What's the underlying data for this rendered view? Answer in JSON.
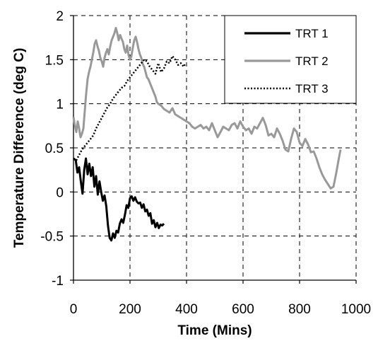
{
  "chart_data": {
    "type": "line",
    "xlabel": "Time (Mins)",
    "ylabel": "Temperature Difference (deg C)",
    "xlim": [
      0,
      1000
    ],
    "ylim": [
      -1,
      2
    ],
    "xticks": [
      0,
      200,
      400,
      600,
      800,
      1000
    ],
    "yticks": [
      -1,
      -0.5,
      0,
      0.5,
      1,
      1.5,
      2
    ],
    "xtick_labels": [
      "0",
      "200",
      "400",
      "600",
      "800",
      "1000"
    ],
    "ytick_labels": [
      "-1",
      "-0.5",
      "0",
      "0.5",
      "1",
      "1.5",
      "2"
    ],
    "grid": "dashed",
    "legend_position": "top-right",
    "series": [
      {
        "name": "TRT 1",
        "color": "#000000",
        "style": "solid",
        "x": [
          0,
          8,
          14,
          20,
          26,
          32,
          38,
          44,
          50,
          56,
          62,
          68,
          74,
          80,
          86,
          92,
          98,
          104,
          110,
          116,
          122,
          128,
          134,
          140,
          146,
          152,
          158,
          164,
          170,
          176,
          182,
          188,
          194,
          200,
          206,
          212,
          218,
          224,
          230,
          236,
          242,
          248,
          254,
          260,
          266,
          272,
          278,
          284,
          290,
          296,
          302,
          308,
          314,
          320
        ],
        "y": [
          0.38,
          0.36,
          0.22,
          0.28,
          0.12,
          -0.02,
          0.25,
          0.38,
          0.2,
          0.32,
          0.18,
          0.28,
          0.06,
          0.18,
          -0.03,
          0.12,
          0.0,
          -0.1,
          -0.04,
          -0.16,
          -0.38,
          -0.52,
          -0.55,
          -0.47,
          -0.52,
          -0.44,
          -0.46,
          -0.36,
          -0.31,
          -0.35,
          -0.26,
          -0.15,
          -0.18,
          -0.07,
          -0.05,
          -0.1,
          -0.06,
          -0.11,
          -0.13,
          -0.12,
          -0.18,
          -0.14,
          -0.22,
          -0.2,
          -0.27,
          -0.24,
          -0.36,
          -0.32,
          -0.4,
          -0.35,
          -0.41,
          -0.37,
          -0.38,
          -0.36
        ]
      },
      {
        "name": "TRT 2",
        "color": "#999999",
        "style": "solid",
        "x": [
          0,
          5,
          10,
          15,
          20,
          25,
          30,
          35,
          40,
          45,
          50,
          55,
          60,
          65,
          70,
          75,
          80,
          85,
          90,
          95,
          100,
          105,
          110,
          115,
          120,
          125,
          130,
          135,
          140,
          145,
          150,
          155,
          160,
          165,
          170,
          175,
          180,
          185,
          190,
          195,
          200,
          205,
          210,
          215,
          220,
          225,
          230,
          235,
          240,
          245,
          250,
          255,
          260,
          265,
          270,
          275,
          280,
          285,
          290,
          295,
          300,
          310,
          320,
          330,
          340,
          350,
          360,
          370,
          380,
          390,
          400,
          410,
          420,
          430,
          440,
          450,
          460,
          470,
          480,
          490,
          500,
          510,
          520,
          530,
          540,
          550,
          560,
          570,
          580,
          590,
          600,
          610,
          620,
          630,
          640,
          650,
          660,
          670,
          680,
          690,
          700,
          710,
          720,
          730,
          740,
          750,
          760,
          770,
          780,
          790,
          800,
          810,
          820,
          830,
          840,
          850,
          860,
          870,
          880,
          890,
          900,
          910,
          920,
          930,
          940,
          945
        ],
        "y": [
          0.85,
          0.75,
          0.68,
          0.8,
          0.72,
          0.62,
          0.66,
          0.72,
          0.92,
          1.12,
          1.28,
          1.36,
          1.42,
          1.5,
          1.58,
          1.68,
          1.72,
          1.65,
          1.6,
          1.52,
          1.48,
          1.42,
          1.52,
          1.58,
          1.62,
          1.56,
          1.65,
          1.72,
          1.76,
          1.8,
          1.86,
          1.8,
          1.72,
          1.78,
          1.74,
          1.7,
          1.62,
          1.58,
          1.66,
          1.55,
          1.5,
          1.54,
          1.64,
          1.72,
          1.76,
          1.7,
          1.62,
          1.56,
          1.52,
          1.45,
          1.42,
          1.36,
          1.3,
          1.28,
          1.24,
          1.2,
          1.16,
          1.12,
          1.08,
          1.02,
          1.0,
          0.98,
          0.94,
          0.92,
          0.9,
          0.95,
          0.88,
          0.86,
          0.84,
          0.82,
          0.8,
          0.78,
          0.74,
          0.72,
          0.74,
          0.76,
          0.72,
          0.74,
          0.7,
          0.78,
          0.7,
          0.62,
          0.68,
          0.74,
          0.72,
          0.7,
          0.76,
          0.78,
          0.72,
          0.8,
          0.74,
          0.7,
          0.72,
          0.66,
          0.74,
          0.72,
          0.78,
          0.84,
          0.76,
          0.64,
          0.66,
          0.62,
          0.72,
          0.66,
          0.58,
          0.48,
          0.46,
          0.6,
          0.72,
          0.68,
          0.56,
          0.52,
          0.6,
          0.54,
          0.45,
          0.46,
          0.38,
          0.28,
          0.2,
          0.14,
          0.09,
          0.04,
          0.06,
          0.22,
          0.4,
          0.48
        ]
      },
      {
        "name": "TRT 3",
        "color": "#000000",
        "style": "dotted",
        "x": [
          0,
          10,
          20,
          30,
          40,
          50,
          60,
          70,
          80,
          90,
          100,
          110,
          120,
          130,
          140,
          150,
          160,
          170,
          180,
          190,
          200,
          210,
          220,
          230,
          240,
          250,
          260,
          270,
          280,
          290,
          300,
          310,
          320,
          330,
          340,
          350,
          360,
          370,
          380,
          390,
          395
        ],
        "y": [
          0.38,
          0.36,
          0.42,
          0.48,
          0.52,
          0.56,
          0.6,
          0.64,
          0.72,
          0.78,
          0.84,
          0.9,
          0.96,
          1.0,
          1.06,
          1.1,
          1.14,
          1.18,
          1.2,
          1.26,
          1.3,
          1.34,
          1.38,
          1.42,
          1.46,
          1.5,
          1.48,
          1.42,
          1.38,
          1.34,
          1.46,
          1.36,
          1.4,
          1.48,
          1.46,
          1.54,
          1.5,
          1.44,
          1.46,
          1.42,
          1.45
        ]
      }
    ]
  }
}
